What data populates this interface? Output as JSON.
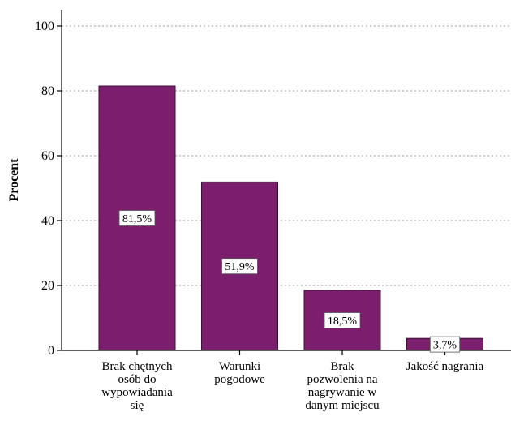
{
  "chart_data": {
    "type": "bar",
    "categories": [
      [
        "Brak chętnych",
        "osób do",
        "wypowiadania",
        "się"
      ],
      [
        "Warunki",
        "pogodowe"
      ],
      [
        "Brak",
        "pozwolenia na",
        "nagrywanie w",
        "danym miejscu"
      ],
      [
        "Jakość nagrania"
      ]
    ],
    "values": [
      81.5,
      51.9,
      18.5,
      3.7
    ],
    "data_labels": [
      "81,5%",
      "51,9%",
      "18,5%",
      "3,7%"
    ],
    "ylabel": "Procent",
    "xlabel": "",
    "ylim": [
      0,
      105
    ],
    "yticks": [
      0,
      20,
      40,
      60,
      80,
      100
    ],
    "grid": "horizontal dotted",
    "bar_color": "#7b1e6e",
    "bar_edge_color": "#3d0f37"
  }
}
